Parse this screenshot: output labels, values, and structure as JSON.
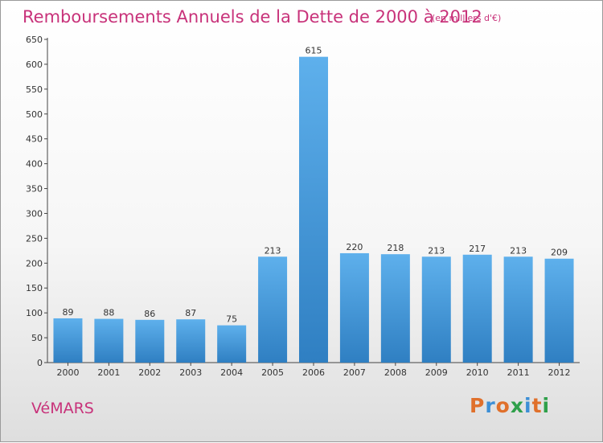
{
  "chart_data": {
    "type": "bar",
    "title": "Remboursements Annuels de la Dette de 2000 à 2012",
    "subtitle": "(en milliers d'€)",
    "categories": [
      "2000",
      "2001",
      "2002",
      "2003",
      "2004",
      "2005",
      "2006",
      "2007",
      "2008",
      "2009",
      "2010",
      "2011",
      "2012"
    ],
    "values": [
      89,
      88,
      86,
      87,
      75,
      213,
      615,
      220,
      218,
      213,
      217,
      213,
      209
    ],
    "ylim": [
      0,
      650
    ],
    "yticks": [
      0,
      50,
      100,
      150,
      200,
      250,
      300,
      350,
      400,
      450,
      500,
      550,
      600,
      650
    ],
    "xlabel": "",
    "ylabel": "",
    "grid": false,
    "legend": "none",
    "bar_color": "#4a9fe0"
  },
  "footer": {
    "place_name": "VéMARS",
    "logo_text": "Proxiti"
  },
  "colors": {
    "title": "#c8327a",
    "logo": [
      "#e0702b",
      "#3d8fd6",
      "#e0702b",
      "#2fa04a",
      "#3d8fd6",
      "#e0702b",
      "#2fa04a"
    ]
  }
}
